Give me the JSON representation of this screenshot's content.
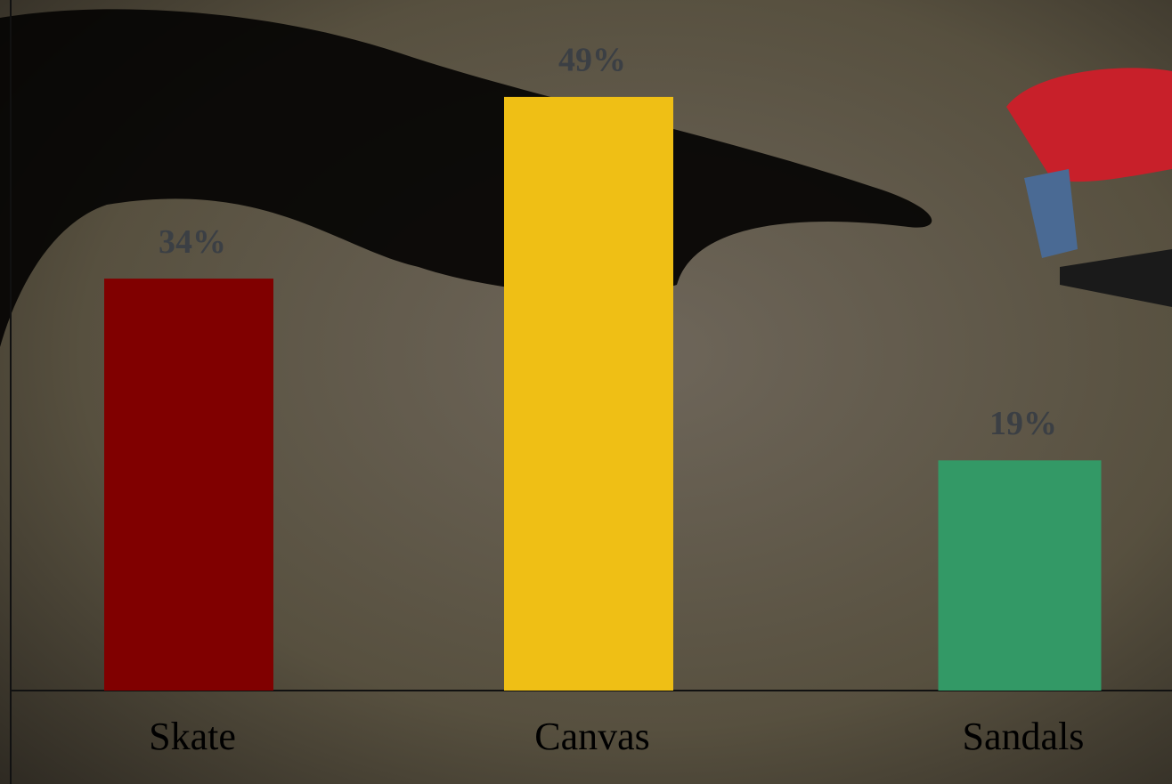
{
  "chart_data": {
    "type": "bar",
    "categories": [
      "Skate",
      "Canvas",
      "Sandals"
    ],
    "values": [
      34,
      49,
      19
    ],
    "value_labels": [
      "34%",
      "49%",
      "19%"
    ],
    "colors": [
      "#800000",
      "#efbf15",
      "#339966"
    ],
    "ylim": [
      0,
      57
    ]
  }
}
